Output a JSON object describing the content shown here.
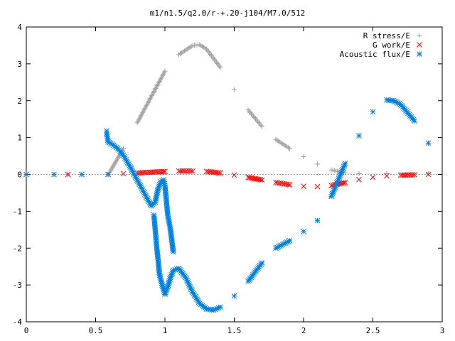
{
  "chart_data": {
    "type": "scatter",
    "title": "m1/n1.5/q2.0/r-+.20-j104/M7.0/512",
    "xlabel": "",
    "ylabel": "",
    "xlim": [
      0,
      3
    ],
    "ylim": [
      -4,
      4
    ],
    "x_ticks": [
      "0",
      "0.5",
      "1",
      "1.5",
      "2",
      "2.5",
      "3"
    ],
    "y_ticks": [
      "4",
      "3",
      "2",
      "1",
      "0",
      "-1",
      "-2",
      "-3",
      "-4"
    ],
    "grid": false,
    "legend_position": "top-right",
    "series": [
      {
        "name": "R stress/E",
        "marker": "plus",
        "color": "#a0a0a0",
        "points": [
          [
            0.0,
            0.0
          ],
          [
            0.3,
            0.0
          ],
          [
            0.59,
            0.0
          ],
          [
            0.6,
            0.05
          ],
          [
            0.7,
            0.7
          ],
          [
            0.8,
            1.4
          ],
          [
            0.9,
            2.1
          ],
          [
            1.0,
            2.8
          ],
          [
            1.1,
            3.25
          ],
          [
            1.2,
            3.5
          ],
          [
            1.25,
            3.52
          ],
          [
            1.3,
            3.4
          ],
          [
            1.4,
            2.9
          ],
          [
            1.5,
            2.3
          ],
          [
            1.6,
            1.75
          ],
          [
            1.7,
            1.3
          ],
          [
            1.8,
            0.95
          ],
          [
            1.9,
            0.7
          ],
          [
            2.0,
            0.48
          ],
          [
            2.1,
            0.28
          ],
          [
            2.2,
            0.12
          ],
          [
            2.3,
            0.04
          ],
          [
            2.4,
            0.02
          ],
          [
            2.6,
            0.02
          ],
          [
            2.9,
            0.02
          ]
        ]
      },
      {
        "name": "G work/E",
        "marker": "cross",
        "color": "#ff0000",
        "points": [
          [
            0.0,
            0.0
          ],
          [
            0.3,
            0.0
          ],
          [
            0.59,
            0.0
          ],
          [
            0.7,
            0.02
          ],
          [
            0.8,
            0.04
          ],
          [
            0.9,
            0.06
          ],
          [
            1.0,
            0.08
          ],
          [
            1.1,
            0.09
          ],
          [
            1.2,
            0.09
          ],
          [
            1.3,
            0.08
          ],
          [
            1.4,
            0.04
          ],
          [
            1.5,
            -0.02
          ],
          [
            1.6,
            -0.08
          ],
          [
            1.7,
            -0.15
          ],
          [
            1.8,
            -0.22
          ],
          [
            1.9,
            -0.28
          ],
          [
            2.0,
            -0.32
          ],
          [
            2.1,
            -0.33
          ],
          [
            2.2,
            -0.3
          ],
          [
            2.3,
            -0.22
          ],
          [
            2.4,
            -0.14
          ],
          [
            2.5,
            -0.08
          ],
          [
            2.6,
            -0.04
          ],
          [
            2.7,
            -0.02
          ],
          [
            2.8,
            -0.01
          ],
          [
            2.9,
            0.0
          ]
        ]
      },
      {
        "name": "Acoustic flux/E",
        "marker": "star",
        "color": "#0080e0",
        "points": [
          [
            0.0,
            0.0
          ],
          [
            0.2,
            0.0
          ],
          [
            0.4,
            0.0
          ],
          [
            0.59,
            0.0
          ],
          [
            0.58,
            1.18
          ],
          [
            0.58,
            1.12
          ],
          [
            0.59,
            0.88
          ],
          [
            0.62,
            0.82
          ],
          [
            0.66,
            0.7
          ],
          [
            0.7,
            0.52
          ],
          [
            0.75,
            0.2
          ],
          [
            0.8,
            -0.15
          ],
          [
            0.85,
            -0.5
          ],
          [
            0.9,
            -0.85
          ],
          [
            0.93,
            -0.75
          ],
          [
            0.95,
            -0.4
          ],
          [
            0.97,
            -0.2
          ],
          [
            0.99,
            -0.15
          ],
          [
            1.0,
            -0.3
          ],
          [
            1.02,
            -1.1
          ],
          [
            1.04,
            -1.5
          ],
          [
            1.06,
            -2.1
          ],
          [
            0.92,
            -1.1
          ],
          [
            0.93,
            -1.5
          ],
          [
            0.94,
            -1.95
          ],
          [
            0.95,
            -2.3
          ],
          [
            0.96,
            -2.7
          ],
          [
            0.98,
            -3.0
          ],
          [
            1.0,
            -3.25
          ],
          [
            1.02,
            -3.05
          ],
          [
            1.04,
            -2.8
          ],
          [
            1.06,
            -2.6
          ],
          [
            1.1,
            -2.55
          ],
          [
            1.15,
            -2.8
          ],
          [
            1.2,
            -3.2
          ],
          [
            1.25,
            -3.5
          ],
          [
            1.3,
            -3.65
          ],
          [
            1.35,
            -3.68
          ],
          [
            1.4,
            -3.6
          ],
          [
            1.5,
            -3.3
          ],
          [
            1.6,
            -2.9
          ],
          [
            1.7,
            -2.4
          ],
          [
            1.8,
            -2.0
          ],
          [
            1.9,
            -1.8
          ],
          [
            2.0,
            -1.55
          ],
          [
            2.1,
            -1.25
          ],
          [
            2.2,
            -0.6
          ],
          [
            2.3,
            0.3
          ],
          [
            2.4,
            1.05
          ],
          [
            2.5,
            1.7
          ],
          [
            2.6,
            2.02
          ],
          [
            2.65,
            2.0
          ],
          [
            2.7,
            1.9
          ],
          [
            2.8,
            1.45
          ],
          [
            2.9,
            0.85
          ]
        ]
      }
    ]
  }
}
